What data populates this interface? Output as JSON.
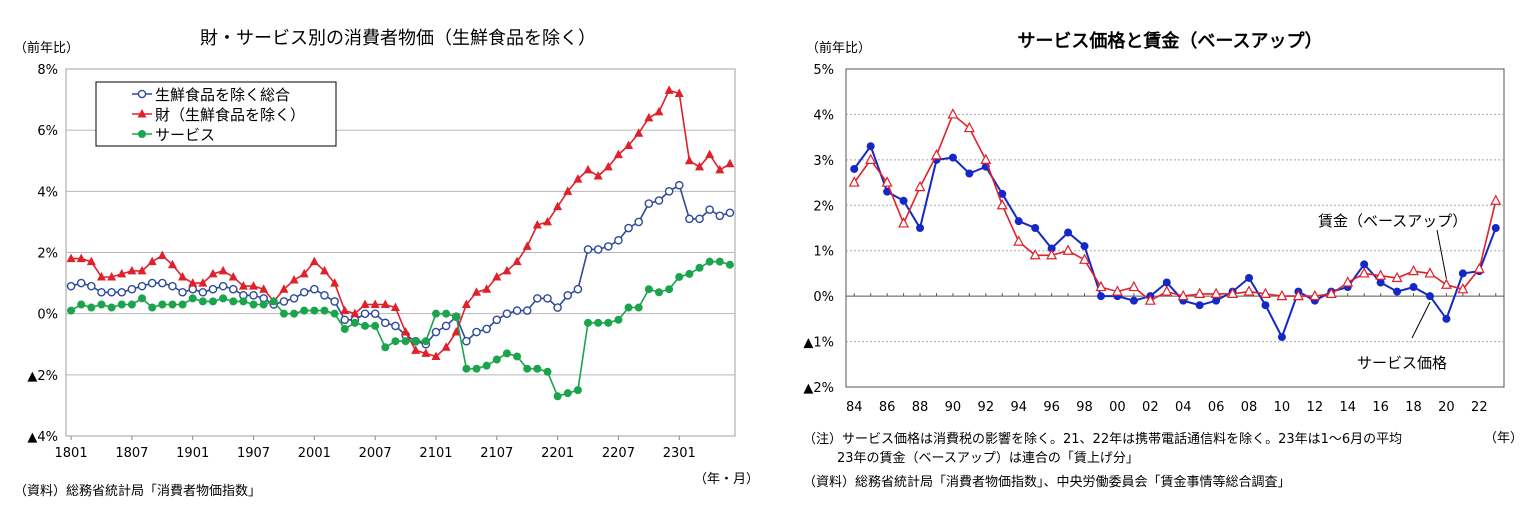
{
  "chart_data": [
    {
      "type": "line",
      "title": "財・サービス別の消費者物価（生鮮食品を除く）",
      "ylabel": "（前年比）",
      "xlabel": "（年・月）",
      "source": "（資料）総務省統計局「消費者物価指数」",
      "ylim": [
        -4,
        8
      ],
      "yticks": [
        -4,
        -2,
        0,
        2,
        4,
        6,
        8
      ],
      "ytick_labels": [
        "▲4%",
        "▲2%",
        "0%",
        "2%",
        "4%",
        "6%",
        "8%"
      ],
      "x_start_month": "2018-01",
      "xtick_labels": [
        "1801",
        "1807",
        "1901",
        "1907",
        "2001",
        "2007",
        "2101",
        "2107",
        "2201",
        "2207",
        "2301"
      ],
      "legend_position": "top-left",
      "grid": true,
      "series": [
        {
          "name": "生鮮食品を除く総合",
          "color": "#2e4a9a",
          "marker": "open-circle",
          "values": [
            0.9,
            1.0,
            0.9,
            0.7,
            0.7,
            0.7,
            0.8,
            0.9,
            1.0,
            1.0,
            0.9,
            0.7,
            0.8,
            0.7,
            0.8,
            0.9,
            0.8,
            0.6,
            0.6,
            0.5,
            0.3,
            0.4,
            0.5,
            0.7,
            0.8,
            0.6,
            0.4,
            -0.2,
            -0.2,
            0.0,
            0.0,
            -0.3,
            -0.4,
            -0.7,
            -0.9,
            -1.0,
            -0.6,
            -0.4,
            -0.1,
            -0.9,
            -0.6,
            -0.5,
            -0.2,
            0.0,
            0.1,
            0.1,
            0.5,
            0.5,
            0.2,
            0.6,
            0.8,
            2.1,
            2.1,
            2.2,
            2.4,
            2.8,
            3.0,
            3.6,
            3.7,
            4.0,
            4.2,
            3.1,
            3.1,
            3.4,
            3.2,
            3.3
          ]
        },
        {
          "name": "財（生鮮食品を除く）",
          "color": "#e0202a",
          "marker": "filled-triangle",
          "values": [
            1.8,
            1.8,
            1.7,
            1.2,
            1.2,
            1.3,
            1.4,
            1.4,
            1.7,
            1.9,
            1.6,
            1.2,
            1.0,
            1.0,
            1.3,
            1.4,
            1.2,
            0.9,
            0.9,
            0.8,
            0.4,
            0.8,
            1.1,
            1.3,
            1.7,
            1.4,
            1.0,
            0.1,
            0.0,
            0.3,
            0.3,
            0.3,
            0.2,
            -0.6,
            -1.2,
            -1.3,
            -1.4,
            -1.1,
            -0.6,
            0.3,
            0.7,
            0.8,
            1.2,
            1.4,
            1.7,
            2.2,
            2.9,
            3.0,
            3.5,
            4.0,
            4.4,
            4.7,
            4.5,
            4.8,
            5.2,
            5.5,
            5.9,
            6.4,
            6.6,
            7.3,
            7.2,
            5.0,
            4.8,
            5.2,
            4.7,
            4.9
          ]
        },
        {
          "name": "サービス",
          "color": "#1aa44c",
          "marker": "filled-circle",
          "values": [
            0.1,
            0.3,
            0.2,
            0.3,
            0.2,
            0.3,
            0.3,
            0.5,
            0.2,
            0.3,
            0.3,
            0.3,
            0.5,
            0.4,
            0.4,
            0.5,
            0.4,
            0.4,
            0.3,
            0.3,
            0.4,
            0.0,
            0.0,
            0.1,
            0.1,
            0.1,
            0.0,
            -0.5,
            -0.3,
            -0.4,
            -0.4,
            -1.1,
            -0.9,
            -0.9,
            -0.9,
            -0.9,
            0.0,
            0.0,
            -0.1,
            -1.8,
            -1.8,
            -1.7,
            -1.5,
            -1.3,
            -1.4,
            -1.8,
            -1.8,
            -1.9,
            -2.7,
            -2.6,
            -2.5,
            -0.3,
            -0.3,
            -0.3,
            -0.2,
            0.2,
            0.2,
            0.8,
            0.7,
            0.8,
            1.2,
            1.3,
            1.5,
            1.7,
            1.7,
            1.6
          ]
        }
      ]
    },
    {
      "type": "line",
      "title": "サービス価格と賃金（ベースアップ）",
      "ylabel": "（前年比）",
      "xlabel": "（年）",
      "ylim": [
        -2,
        5
      ],
      "yticks": [
        -2,
        -1,
        0,
        1,
        2,
        3,
        4,
        5
      ],
      "ytick_labels": [
        "▲2%",
        "▲1%",
        "0%",
        "1%",
        "2%",
        "3%",
        "4%",
        "5%"
      ],
      "x": [
        1984,
        1985,
        1986,
        1987,
        1988,
        1989,
        1990,
        1991,
        1992,
        1993,
        1994,
        1995,
        1996,
        1997,
        1998,
        1999,
        2000,
        2001,
        2002,
        2003,
        2004,
        2005,
        2006,
        2007,
        2008,
        2009,
        2010,
        2011,
        2012,
        2013,
        2014,
        2015,
        2016,
        2017,
        2018,
        2019,
        2020,
        2021,
        2022,
        2023
      ],
      "xtick_labels": [
        "84",
        "86",
        "88",
        "90",
        "92",
        "94",
        "96",
        "98",
        "00",
        "02",
        "04",
        "06",
        "08",
        "10",
        "12",
        "14",
        "16",
        "18",
        "20",
        "22"
      ],
      "grid": true,
      "notes": [
        "（注）サービス価格は消費税の影響を除く。21、22年は携帯電話通信料を除く。23年は1～6月の平均",
        "23年の賃金（ベースアップ）は連合の「賃上げ分」"
      ],
      "source": "（資料）総務省統計局「消費者物価指数」、中央労働委員会「賃金事情等総合調査」",
      "series": [
        {
          "name": "サービス価格",
          "color": "#1428c8",
          "marker": "filled-circle",
          "values": [
            2.8,
            3.3,
            2.3,
            2.1,
            1.5,
            3.0,
            3.05,
            2.7,
            2.85,
            2.25,
            1.65,
            1.5,
            1.05,
            1.4,
            1.1,
            0.0,
            0.0,
            -0.1,
            0.0,
            0.3,
            -0.1,
            -0.2,
            -0.1,
            0.1,
            0.4,
            -0.2,
            -0.9,
            0.1,
            -0.1,
            0.1,
            0.2,
            0.7,
            0.3,
            0.1,
            0.2,
            0.0,
            -0.5,
            0.5,
            0.55,
            1.5
          ]
        },
        {
          "name": "賃金（ベースアップ）",
          "color": "#e0202a",
          "marker": "open-triangle",
          "values": [
            2.5,
            3.0,
            2.5,
            1.6,
            2.4,
            3.1,
            4.0,
            3.7,
            3.0,
            2.0,
            1.2,
            0.9,
            0.9,
            1.0,
            0.8,
            0.2,
            0.1,
            0.2,
            -0.1,
            0.1,
            0.0,
            0.05,
            0.05,
            0.05,
            0.1,
            0.05,
            0.0,
            0.0,
            0.0,
            0.05,
            0.3,
            0.5,
            0.45,
            0.4,
            0.55,
            0.5,
            0.25,
            0.15,
            0.6,
            2.1
          ]
        }
      ]
    }
  ]
}
